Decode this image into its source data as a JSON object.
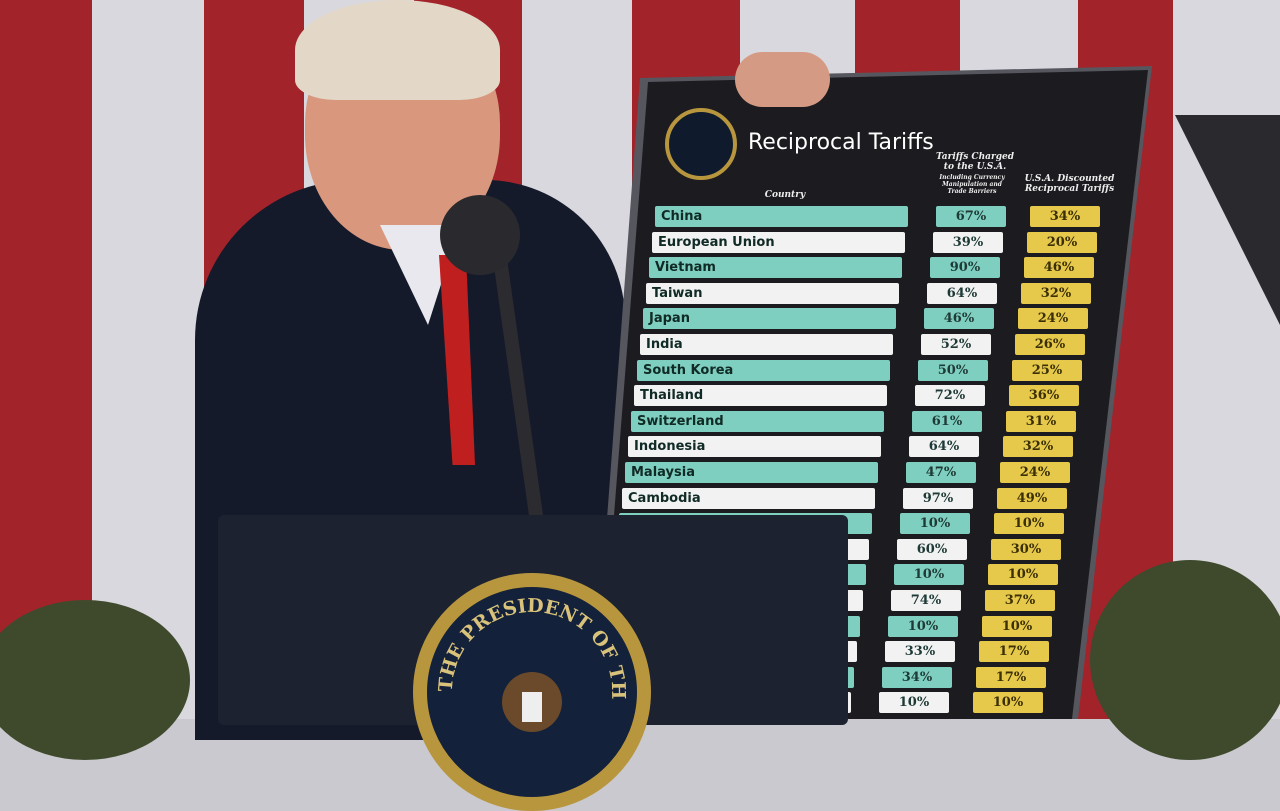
{
  "board": {
    "title": "Reciprocal Tariffs",
    "col_country": "Country",
    "col_charged": "Tariffs Charged to the U.S.A.",
    "col_charged_sub": "Including Currency Manipulation and Trade Barriers",
    "col_reciprocal": "U.S.A. Discounted Reciprocal Tariffs",
    "rows": [
      {
        "country": "China",
        "charged": "67%",
        "reciprocal": "34%"
      },
      {
        "country": "European Union",
        "charged": "39%",
        "reciprocal": "20%"
      },
      {
        "country": "Vietnam",
        "charged": "90%",
        "reciprocal": "46%"
      },
      {
        "country": "Taiwan",
        "charged": "64%",
        "reciprocal": "32%"
      },
      {
        "country": "Japan",
        "charged": "46%",
        "reciprocal": "24%"
      },
      {
        "country": "India",
        "charged": "52%",
        "reciprocal": "26%"
      },
      {
        "country": "South Korea",
        "charged": "50%",
        "reciprocal": "25%"
      },
      {
        "country": "Thailand",
        "charged": "72%",
        "reciprocal": "36%"
      },
      {
        "country": "Switzerland",
        "charged": "61%",
        "reciprocal": "31%"
      },
      {
        "country": "Indonesia",
        "charged": "64%",
        "reciprocal": "32%"
      },
      {
        "country": "Malaysia",
        "charged": "47%",
        "reciprocal": "24%"
      },
      {
        "country": "Cambodia",
        "charged": "97%",
        "reciprocal": "49%"
      },
      {
        "country": "",
        "charged": "10%",
        "reciprocal": "10%"
      },
      {
        "country": "",
        "charged": "60%",
        "reciprocal": "30%"
      },
      {
        "country": "",
        "charged": "10%",
        "reciprocal": "10%"
      },
      {
        "country": "",
        "charged": "74%",
        "reciprocal": "37%"
      },
      {
        "country": "",
        "charged": "10%",
        "reciprocal": "10%"
      },
      {
        "country": "",
        "charged": "33%",
        "reciprocal": "17%"
      },
      {
        "country": "",
        "charged": "34%",
        "reciprocal": "17%"
      },
      {
        "country": "",
        "charged": "10%",
        "reciprocal": "10%"
      }
    ]
  },
  "podium": {
    "seal_text": "THE PRESIDENT OF THE UNITED"
  },
  "colors": {
    "teal": "#7fcfc0",
    "gold": "#e6c84a",
    "flag_red": "#a3232a"
  }
}
